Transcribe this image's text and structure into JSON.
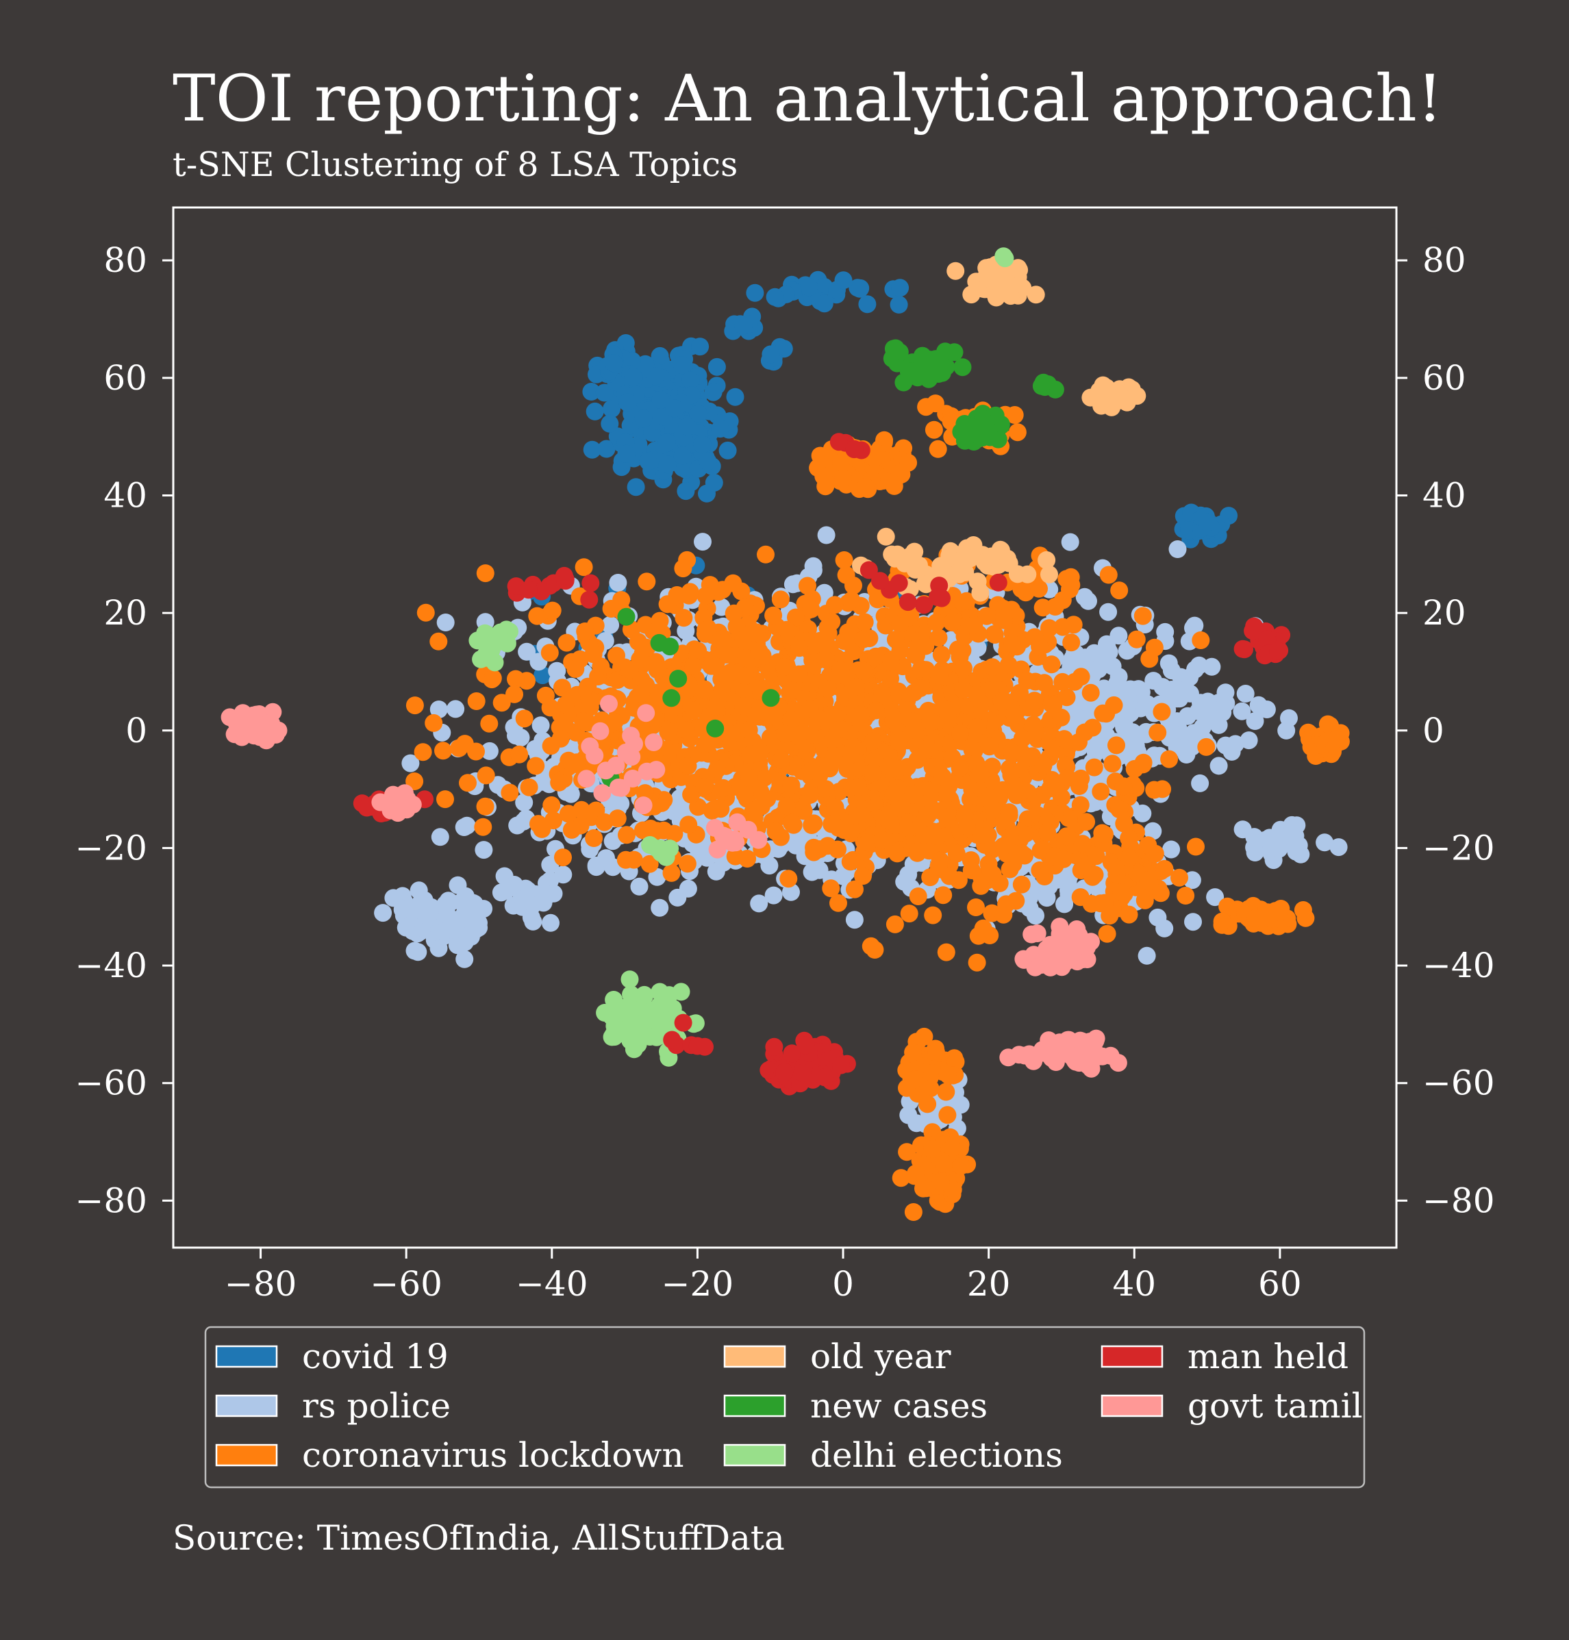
{
  "chart_data": {
    "type": "scatter",
    "title": "TOI reporting: An analytical approach!",
    "subtitle": "t-SNE Clustering of 8 LSA Topics",
    "source": "Source: TimesOfIndia, AllStuffData",
    "xlim": [
      -92,
      76
    ],
    "ylim": [
      -88,
      89
    ],
    "x_ticks": [
      -80,
      -60,
      -40,
      -20,
      0,
      20,
      40,
      60
    ],
    "y_ticks": [
      80,
      60,
      40,
      20,
      0,
      -20,
      -40,
      -60,
      -80
    ],
    "x_tick_labels": [
      "−80",
      "−60",
      "−40",
      "−20",
      "0",
      "20",
      "40",
      "60"
    ],
    "y_tick_labels": [
      "80",
      "60",
      "40",
      "20",
      "0",
      "−20",
      "−40",
      "−60",
      "−80"
    ],
    "grid": false,
    "legend_placement": "bottom",
    "series": [
      {
        "name": "covid 19",
        "color": "#1f77b4",
        "clusters": [
          {
            "cx": -24,
            "cy": 53,
            "sx": 4,
            "sy": 5,
            "n": 230
          },
          {
            "cx": -30,
            "cy": 62,
            "sx": 2.5,
            "sy": 1.2,
            "n": 25
          },
          {
            "cx": -3,
            "cy": 74.5,
            "sx": 5,
            "sy": 1,
            "n": 30
          },
          {
            "cx": -14,
            "cy": 69,
            "sx": 1,
            "sy": 0.8,
            "n": 8
          },
          {
            "cx": -10,
            "cy": 64,
            "sx": 1,
            "sy": 1,
            "n": 6
          },
          {
            "cx": 49,
            "cy": 34.5,
            "sx": 1.6,
            "sy": 1.3,
            "n": 40
          },
          {
            "cx": -5,
            "cy": 6,
            "sx": 2,
            "sy": 2,
            "n": 12
          },
          {
            "cx": -10,
            "cy": 10,
            "sx": 20,
            "sy": 10,
            "n": 30
          }
        ]
      },
      {
        "name": "rs police",
        "color": "#aec7e8",
        "clusters": [
          {
            "cx": -5,
            "cy": -2,
            "sx": 20,
            "sy": 12,
            "n": 1300
          },
          {
            "cx": 30,
            "cy": 5,
            "sx": 10,
            "sy": 10,
            "n": 260
          },
          {
            "cx": 45,
            "cy": 4,
            "sx": 7,
            "sy": 4,
            "n": 60
          },
          {
            "cx": -55,
            "cy": -32,
            "sx": 3.5,
            "sy": 2.5,
            "n": 95
          },
          {
            "cx": -44,
            "cy": -29,
            "sx": 2,
            "sy": 1.5,
            "n": 20
          },
          {
            "cx": 62,
            "cy": -18.5,
            "sx": 2.5,
            "sy": 1.5,
            "n": 25
          },
          {
            "cx": 13,
            "cy": -62,
            "sx": 2,
            "sy": 4,
            "n": 30
          },
          {
            "cx": 32,
            "cy": -25,
            "sx": 8,
            "sy": 5,
            "n": 80
          }
        ]
      },
      {
        "name": "coronavirus lockdown",
        "color": "#ff7f0e",
        "clusters": [
          {
            "cx": -5,
            "cy": 2,
            "sx": 20,
            "sy": 11,
            "n": 1150
          },
          {
            "cx": 20,
            "cy": -15,
            "sx": 10,
            "sy": 9,
            "n": 260
          },
          {
            "cx": 3,
            "cy": 45,
            "sx": 3,
            "sy": 2,
            "n": 110
          },
          {
            "cx": 13,
            "cy": -75,
            "sx": 2,
            "sy": 3.5,
            "n": 70
          },
          {
            "cx": 12,
            "cy": -57,
            "sx": 2,
            "sy": 3,
            "n": 40
          },
          {
            "cx": 66.5,
            "cy": -2,
            "sx": 1.4,
            "sy": 1.4,
            "n": 35
          },
          {
            "cx": 57,
            "cy": -31.5,
            "sx": 3,
            "sy": 1,
            "n": 40
          },
          {
            "cx": 40,
            "cy": -24,
            "sx": 3,
            "sy": 4,
            "n": 60
          },
          {
            "cx": 18,
            "cy": 52,
            "sx": 3,
            "sy": 2,
            "n": 25
          },
          {
            "cx": 20,
            "cy": 20,
            "sx": 8,
            "sy": 5,
            "n": 60
          }
        ]
      },
      {
        "name": "old year",
        "color": "#ffbb78",
        "clusters": [
          {
            "cx": 21.5,
            "cy": 76.5,
            "sx": 2,
            "sy": 1.2,
            "n": 55
          },
          {
            "cx": 37,
            "cy": 57,
            "sx": 1.5,
            "sy": 1.2,
            "n": 25
          },
          {
            "cx": 15,
            "cy": 28,
            "sx": 6,
            "sy": 2,
            "n": 55
          }
        ]
      },
      {
        "name": "new cases",
        "color": "#2ca02c",
        "clusters": [
          {
            "cx": 12,
            "cy": 61.5,
            "sx": 2,
            "sy": 1,
            "n": 35
          },
          {
            "cx": 19.5,
            "cy": 51.5,
            "sx": 1.5,
            "sy": 1.2,
            "n": 30
          },
          {
            "cx": 6.5,
            "cy": 64.5,
            "sx": 0.6,
            "sy": 0.6,
            "n": 6
          },
          {
            "cx": 28,
            "cy": 58.5,
            "sx": 0.8,
            "sy": 0.5,
            "n": 5
          },
          {
            "cx": -20,
            "cy": 5,
            "sx": 10,
            "sy": 8,
            "n": 8
          }
        ]
      },
      {
        "name": "delhi elections",
        "color": "#98df8a",
        "clusters": [
          {
            "cx": -27,
            "cy": -49,
            "sx": 2.5,
            "sy": 2.5,
            "n": 90
          },
          {
            "cx": -48,
            "cy": 14,
            "sx": 1.5,
            "sy": 2,
            "n": 20
          },
          {
            "cx": -25,
            "cy": -20,
            "sx": 1,
            "sy": 0.8,
            "n": 6
          },
          {
            "cx": 22.5,
            "cy": 80.5,
            "sx": 0.4,
            "sy": 0.4,
            "n": 3
          }
        ]
      },
      {
        "name": "man held",
        "color": "#d62728",
        "clusters": [
          {
            "cx": -5,
            "cy": -57,
            "sx": 3,
            "sy": 1.8,
            "n": 75
          },
          {
            "cx": -62,
            "cy": -12.5,
            "sx": 2,
            "sy": 0.8,
            "n": 25
          },
          {
            "cx": 58,
            "cy": 14.5,
            "sx": 1.5,
            "sy": 1.3,
            "n": 20
          },
          {
            "cx": -40,
            "cy": 24,
            "sx": 3,
            "sy": 1,
            "n": 12
          },
          {
            "cx": 2,
            "cy": 49,
            "sx": 1,
            "sy": 1,
            "n": 5
          },
          {
            "cx": -22,
            "cy": -52,
            "sx": 1.5,
            "sy": 1,
            "n": 6
          },
          {
            "cx": 10,
            "cy": 24,
            "sx": 6,
            "sy": 2,
            "n": 10
          }
        ]
      },
      {
        "name": "govt tamil",
        "color": "#ff9896",
        "clusters": [
          {
            "cx": -80.5,
            "cy": 1,
            "sx": 1.7,
            "sy": 1.4,
            "n": 60
          },
          {
            "cx": 31,
            "cy": -54.5,
            "sx": 3,
            "sy": 1.3,
            "n": 70
          },
          {
            "cx": 30,
            "cy": -37,
            "sx": 2.2,
            "sy": 1.5,
            "n": 50
          },
          {
            "cx": -60,
            "cy": -12,
            "sx": 1.5,
            "sy": 1,
            "n": 12
          },
          {
            "cx": -15,
            "cy": -18,
            "sx": 2,
            "sy": 1.5,
            "n": 10
          },
          {
            "cx": -30,
            "cy": -5,
            "sx": 5,
            "sy": 4,
            "n": 20
          }
        ]
      }
    ]
  }
}
